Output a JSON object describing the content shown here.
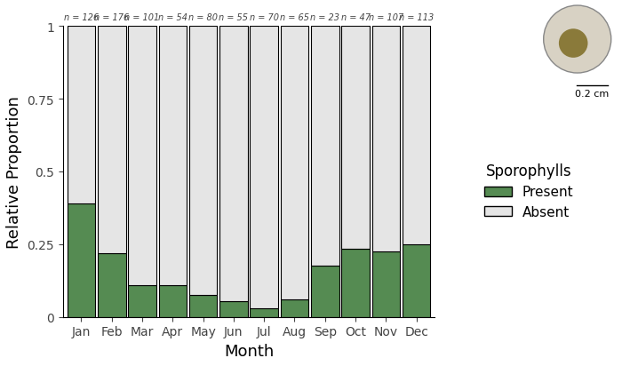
{
  "chart_data": {
    "type": "bar",
    "stacked": true,
    "x_label": "Month",
    "y_label": "Relative Proportion",
    "categories": [
      "Jan",
      "Feb",
      "Mar",
      "Apr",
      "May",
      "Jun",
      "Jul",
      "Aug",
      "Sep",
      "Oct",
      "Nov",
      "Dec"
    ],
    "series": [
      {
        "name": "Present",
        "color": "#558b52",
        "values": [
          0.39,
          0.22,
          0.11,
          0.11,
          0.075,
          0.055,
          0.03,
          0.06,
          0.175,
          0.235,
          0.225,
          0.25
        ]
      },
      {
        "name": "Absent",
        "color": "#e5e5e5",
        "values": [
          0.61,
          0.78,
          0.89,
          0.89,
          0.925,
          0.945,
          0.97,
          0.94,
          0.825,
          0.765,
          0.775,
          0.75
        ]
      }
    ],
    "annotations": [
      "n = 126",
      "n = 176",
      "n = 101",
      "n = 54",
      "n = 80",
      "n = 55",
      "n = 70",
      "n = 65",
      "n = 23",
      "n = 47",
      "n = 107",
      "n = 113"
    ],
    "ylim": [
      0,
      1
    ],
    "yticks": [
      0,
      0.25,
      0.5,
      0.75,
      1
    ],
    "legend": "center right",
    "legend_title": "Sporophylls",
    "scale_bar_label": "0.2 cm",
    "grid": false
  }
}
